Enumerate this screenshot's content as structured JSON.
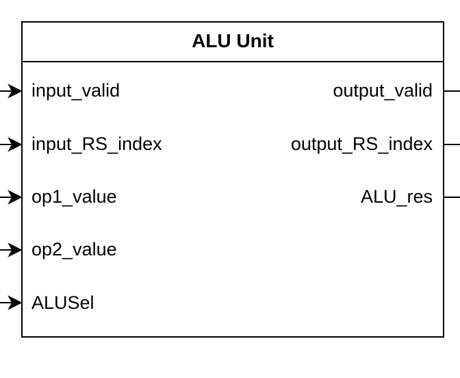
{
  "block": {
    "title": "ALU Unit"
  },
  "inputs": [
    {
      "label": "input_valid"
    },
    {
      "label": "input_RS_index"
    },
    {
      "label": "op1_value"
    },
    {
      "label": "op2_value"
    },
    {
      "label": "ALUSel"
    }
  ],
  "outputs": [
    {
      "label": "output_valid"
    },
    {
      "label": "output_RS_index"
    },
    {
      "label": "ALU_res"
    }
  ],
  "colors": {
    "stroke": "#000000",
    "fill": "#ffffff"
  }
}
